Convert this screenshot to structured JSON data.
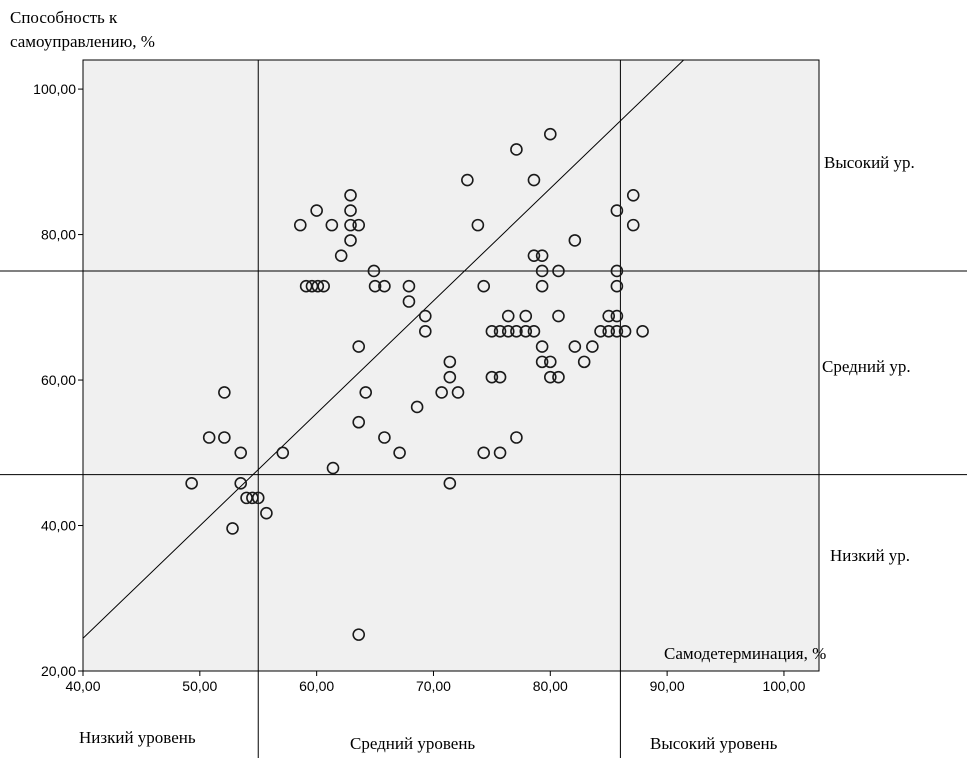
{
  "chart_data": {
    "type": "scatter",
    "ylabel_lines": [
      "Способность к",
      "самоуправлению, %"
    ],
    "xlabel": "Самодетерминация, %",
    "xlim": [
      40,
      103
    ],
    "ylim": [
      20,
      104
    ],
    "x_ticks": [
      "40,00",
      "50,00",
      "60,00",
      "70,00",
      "80,00",
      "90,00",
      "100,00"
    ],
    "y_ticks": [
      "20,00",
      "40,00",
      "60,00",
      "80,00",
      "100,00"
    ],
    "x_tick_values": [
      40,
      50,
      60,
      70,
      80,
      90,
      100
    ],
    "y_tick_values": [
      20,
      40,
      60,
      80,
      100
    ],
    "grid": false,
    "plot_background": "#f0f0f0",
    "reference_lines": {
      "vertical": [
        55,
        86
      ],
      "horizontal": [
        47,
        75
      ]
    },
    "fit_line": {
      "from": [
        40,
        24.5
      ],
      "to": [
        94,
        108
      ]
    },
    "zone_labels": {
      "y": [
        "Высокий ур.",
        "Средний ур.",
        "Низкий ур."
      ],
      "x": [
        "Низкий уровень",
        "Средний уровень",
        "Высокий уровень"
      ]
    },
    "points": [
      [
        49.3,
        45.8
      ],
      [
        50.8,
        52.1
      ],
      [
        52.1,
        52.1
      ],
      [
        52.1,
        58.3
      ],
      [
        52.8,
        39.6
      ],
      [
        53.5,
        50.0
      ],
      [
        53.5,
        45.8
      ],
      [
        54.0,
        43.8
      ],
      [
        54.5,
        43.8
      ],
      [
        55.0,
        43.8
      ],
      [
        55.7,
        41.7
      ],
      [
        57.1,
        50.0
      ],
      [
        58.6,
        81.3
      ],
      [
        59.1,
        72.9
      ],
      [
        59.6,
        72.9
      ],
      [
        60.0,
        83.3
      ],
      [
        60.1,
        72.9
      ],
      [
        60.6,
        72.9
      ],
      [
        61.3,
        81.3
      ],
      [
        61.4,
        47.9
      ],
      [
        62.1,
        77.1
      ],
      [
        62.9,
        85.4
      ],
      [
        62.9,
        83.3
      ],
      [
        62.9,
        81.3
      ],
      [
        62.9,
        79.2
      ],
      [
        63.6,
        81.3
      ],
      [
        63.6,
        64.6
      ],
      [
        63.6,
        54.2
      ],
      [
        63.6,
        25.0
      ],
      [
        64.2,
        58.3
      ],
      [
        64.9,
        75.0
      ],
      [
        65.0,
        72.9
      ],
      [
        65.8,
        72.9
      ],
      [
        65.8,
        52.1
      ],
      [
        67.1,
        50.0
      ],
      [
        67.9,
        72.9
      ],
      [
        67.9,
        70.8
      ],
      [
        68.6,
        56.3
      ],
      [
        69.3,
        68.8
      ],
      [
        69.3,
        66.7
      ],
      [
        70.7,
        58.3
      ],
      [
        71.4,
        62.5
      ],
      [
        71.4,
        60.4
      ],
      [
        71.4,
        45.8
      ],
      [
        72.1,
        58.3
      ],
      [
        72.9,
        87.5
      ],
      [
        73.8,
        81.3
      ],
      [
        74.3,
        72.9
      ],
      [
        74.3,
        50.0
      ],
      [
        75.0,
        66.7
      ],
      [
        75.0,
        60.4
      ],
      [
        75.7,
        66.7
      ],
      [
        75.7,
        60.4
      ],
      [
        75.7,
        50.0
      ],
      [
        76.4,
        66.7
      ],
      [
        76.4,
        68.8
      ],
      [
        77.1,
        66.7
      ],
      [
        77.1,
        91.7
      ],
      [
        77.1,
        52.1
      ],
      [
        77.9,
        66.7
      ],
      [
        77.9,
        68.8
      ],
      [
        78.6,
        66.7
      ],
      [
        78.6,
        77.1
      ],
      [
        78.6,
        87.5
      ],
      [
        79.3,
        77.1
      ],
      [
        79.3,
        75.0
      ],
      [
        79.3,
        72.9
      ],
      [
        79.3,
        64.6
      ],
      [
        79.3,
        62.5
      ],
      [
        80.0,
        93.8
      ],
      [
        80.0,
        62.5
      ],
      [
        80.0,
        60.4
      ],
      [
        80.7,
        75.0
      ],
      [
        80.7,
        68.8
      ],
      [
        80.7,
        60.4
      ],
      [
        82.1,
        79.2
      ],
      [
        82.1,
        64.6
      ],
      [
        82.9,
        62.5
      ],
      [
        83.6,
        64.6
      ],
      [
        84.3,
        66.7
      ],
      [
        85.0,
        66.7
      ],
      [
        85.0,
        68.8
      ],
      [
        85.7,
        83.3
      ],
      [
        85.7,
        75.0
      ],
      [
        85.7,
        72.9
      ],
      [
        85.7,
        68.8
      ],
      [
        85.7,
        66.7
      ],
      [
        86.4,
        66.7
      ],
      [
        87.1,
        85.4
      ],
      [
        87.1,
        81.3
      ],
      [
        87.9,
        66.7
      ]
    ]
  }
}
